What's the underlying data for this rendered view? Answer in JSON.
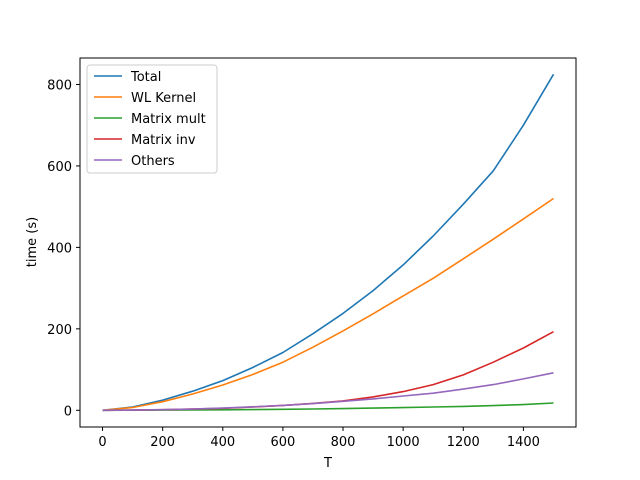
{
  "chart_data": {
    "type": "line",
    "title": "",
    "xlabel": "T",
    "ylabel": "time (s)",
    "xlim": [
      -75,
      1575
    ],
    "ylim": [
      -41,
      865
    ],
    "x_ticks": [
      0,
      200,
      400,
      600,
      800,
      1000,
      1200,
      1400
    ],
    "y_ticks": [
      0,
      200,
      400,
      600,
      800
    ],
    "grid": false,
    "legend_position": "top-left",
    "x": [
      0,
      100,
      200,
      300,
      400,
      500,
      600,
      700,
      800,
      900,
      1000,
      1100,
      1200,
      1300,
      1400,
      1500
    ],
    "series": [
      {
        "name": "Total",
        "color": "#1f77b4",
        "values": [
          0,
          8,
          25,
          47,
          73,
          105,
          142,
          188,
          238,
          294,
          357,
          428,
          506,
          588,
          700,
          825
        ]
      },
      {
        "name": "WL Kernel",
        "color": "#ff7f0e",
        "values": [
          0,
          7,
          21,
          40,
          62,
          88,
          118,
          155,
          195,
          237,
          281,
          324,
          372,
          420,
          470,
          520
        ]
      },
      {
        "name": "Matrix mult",
        "color": "#2ca02c",
        "values": [
          0,
          0.2,
          0.5,
          0.8,
          1.2,
          1.8,
          2.5,
          3.3,
          4.2,
          5.3,
          6.6,
          8,
          9.6,
          11.5,
          14,
          18
        ]
      },
      {
        "name": "Matrix inv",
        "color": "#d62728",
        "values": [
          0,
          0.5,
          1.5,
          3,
          5,
          8,
          12,
          17,
          23,
          33,
          46,
          63,
          87,
          118,
          153,
          193
        ]
      },
      {
        "name": "Others",
        "color": "#9467bd",
        "values": [
          0,
          0.5,
          1.5,
          3,
          5.5,
          8.5,
          12,
          16.5,
          22,
          28,
          35,
          42,
          52,
          63,
          77,
          92
        ]
      }
    ]
  }
}
